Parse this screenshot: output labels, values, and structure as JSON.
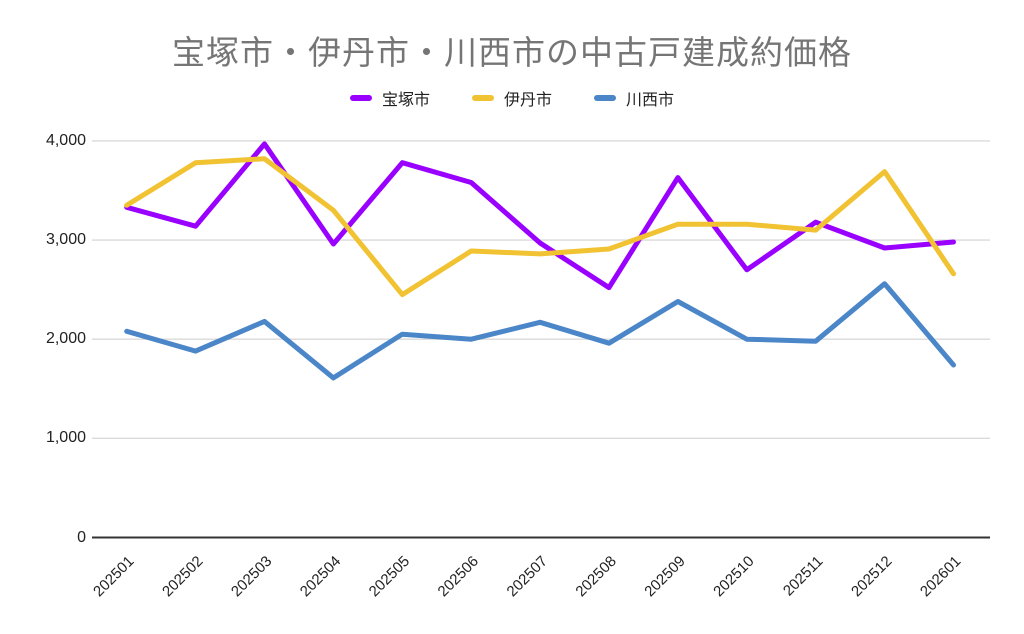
{
  "title": {
    "text": "宝塚市・伊丹市・川西市の中古戸建成約価格",
    "color": "#757575"
  },
  "legend": {
    "items": [
      {
        "label": "宝塚市",
        "color": "#9900FF"
      },
      {
        "label": "伊丹市",
        "color": "#F1C232"
      },
      {
        "label": "川西市",
        "color": "#4A86C8"
      }
    ]
  },
  "chart_data": {
    "type": "line",
    "title": "宝塚市・伊丹市・川西市の中古戸建成約価格",
    "xlabel": "",
    "ylabel": "",
    "categories": [
      "202501",
      "202502",
      "202503",
      "202504",
      "202505",
      "202506",
      "202507",
      "202508",
      "202509",
      "202510",
      "202511",
      "202512",
      "202601"
    ],
    "series": [
      {
        "name": "宝塚市",
        "color": "#9900FF",
        "values": [
          3330,
          3140,
          3970,
          2960,
          3780,
          3580,
          2970,
          2520,
          3630,
          2700,
          3180,
          2920,
          2980
        ]
      },
      {
        "name": "伊丹市",
        "color": "#F1C232",
        "values": [
          3350,
          3780,
          3820,
          3300,
          2450,
          2890,
          2860,
          2910,
          3160,
          3160,
          3100,
          3690,
          2660
        ]
      },
      {
        "name": "川西市",
        "color": "#4A86C8",
        "values": [
          2080,
          1880,
          2180,
          1610,
          2050,
          2000,
          2170,
          1960,
          2380,
          2000,
          1980,
          2560,
          1740
        ]
      }
    ],
    "ylim": [
      0,
      4000
    ],
    "yticks": [
      0,
      1000,
      2000,
      3000,
      4000
    ],
    "ytick_labels": [
      "0",
      "1,000",
      "2,000",
      "3,000",
      "4,000"
    ],
    "grid": true,
    "legend_position": "top",
    "gridline_color": "#DADADA",
    "axis_color": "#333333"
  }
}
